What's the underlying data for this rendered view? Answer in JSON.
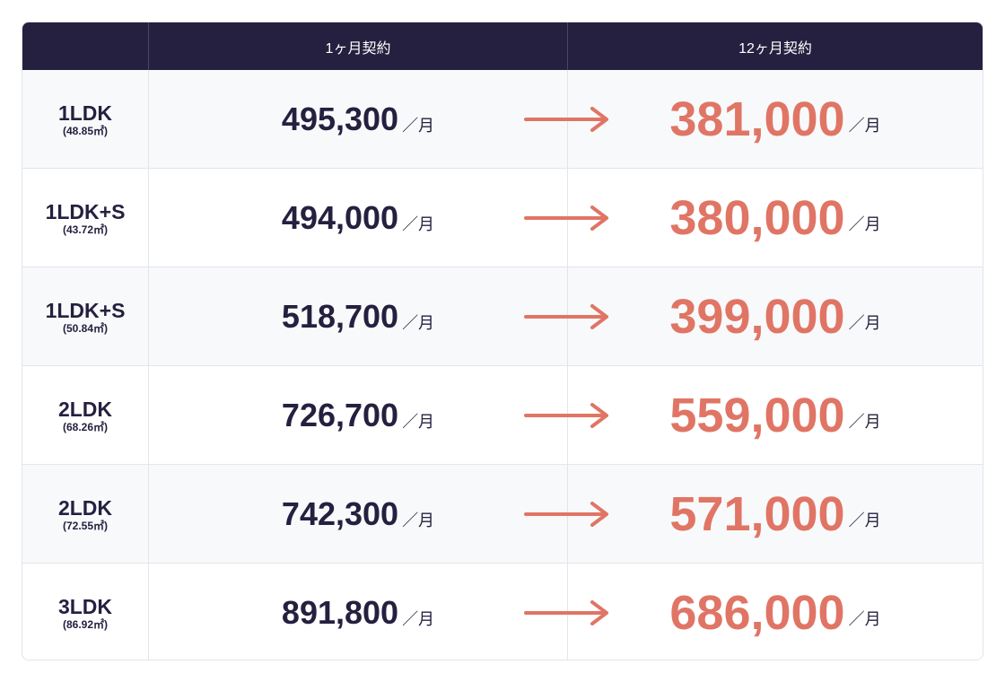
{
  "table": {
    "header": [
      "1ヶ月契約",
      "12ヶ月契約"
    ],
    "unit": "／月",
    "rows": [
      {
        "type": "1LDK",
        "area": "(48.85㎡)",
        "monthly": "495,300",
        "annual": "381,000"
      },
      {
        "type": "1LDK+S",
        "area": "(43.72㎡)",
        "monthly": "494,000",
        "annual": "380,000"
      },
      {
        "type": "1LDK+S",
        "area": "(50.84㎡)",
        "monthly": "518,700",
        "annual": "399,000"
      },
      {
        "type": "2LDK",
        "area": "(68.26㎡)",
        "monthly": "726,700",
        "annual": "559,000"
      },
      {
        "type": "2LDK",
        "area": "(72.55㎡)",
        "monthly": "742,300",
        "annual": "571,000"
      },
      {
        "type": "3LDK",
        "area": "(86.92㎡)",
        "monthly": "891,800",
        "annual": "686,000"
      }
    ]
  }
}
